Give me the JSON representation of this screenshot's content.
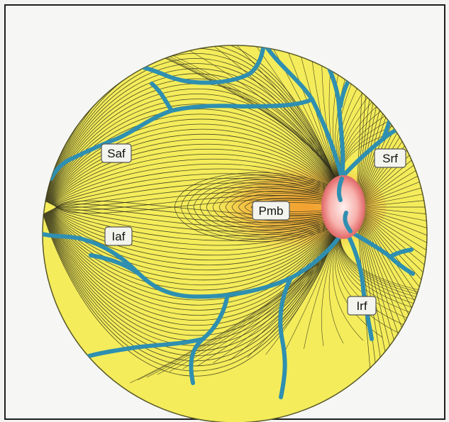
{
  "figure": {
    "labels": {
      "saf": "Saf",
      "srf": "Srf",
      "pmb": "Pmb",
      "iaf": "Iaf",
      "irf": "Irf"
    },
    "colors": {
      "retina_fill": "#f4ec5a",
      "papillomacular_fill": "#f2b640",
      "fiber_lines": "#2a2a1a",
      "vessels": "#2f8fb0",
      "optic_disc": "#f4a7a2",
      "optic_disc_rim": "#e06f6f"
    }
  }
}
